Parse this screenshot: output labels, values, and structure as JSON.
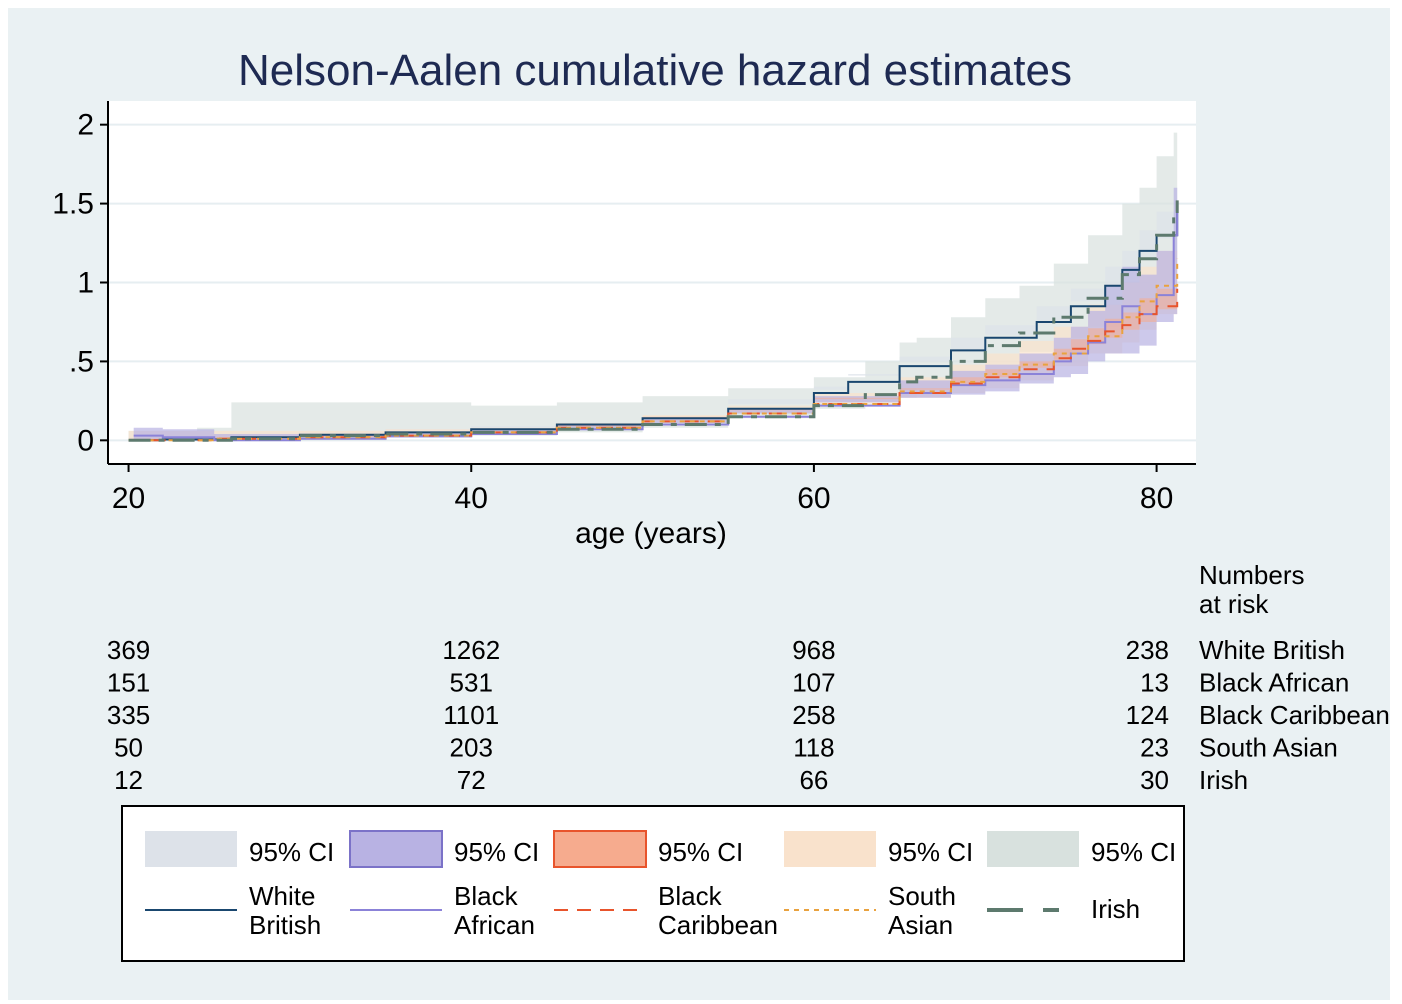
{
  "chart_data": {
    "type": "line",
    "title": "Nelson-Aalen cumulative hazard estimates",
    "xlabel": "age (years)",
    "ylabel": "",
    "xlim": [
      18.8,
      82.3
    ],
    "ylim": [
      -0.15,
      2.15
    ],
    "xticks": [
      {
        "value": 20,
        "label": "20"
      },
      {
        "value": 40,
        "label": "40"
      },
      {
        "value": 60,
        "label": "60"
      },
      {
        "value": 80,
        "label": "80"
      }
    ],
    "yticks": [
      {
        "value": 0,
        "label": "0"
      },
      {
        "value": 0.5,
        "label": ".5"
      },
      {
        "value": 1,
        "label": "1"
      },
      {
        "value": 1.5,
        "label": "1.5"
      },
      {
        "value": 2,
        "label": "2"
      }
    ],
    "grid": true,
    "series": [
      {
        "name": "White British",
        "color": "#1a476f",
        "dash": "solid",
        "ci_color": "#dde2e9",
        "ci_label": "95% CI",
        "x": [
          20,
          22,
          26,
          30,
          35,
          40,
          45,
          50,
          55,
          60,
          62,
          65,
          68,
          70,
          73,
          75,
          77,
          78,
          79,
          80,
          81.2
        ],
        "y": [
          0,
          0.005,
          0.02,
          0.035,
          0.05,
          0.07,
          0.1,
          0.14,
          0.2,
          0.3,
          0.37,
          0.47,
          0.57,
          0.65,
          0.75,
          0.85,
          0.98,
          1.08,
          1.2,
          1.3,
          1.45
        ],
        "lo": [
          0,
          0,
          0,
          0.02,
          0.035,
          0.05,
          0.08,
          0.12,
          0.17,
          0.26,
          0.32,
          0.41,
          0.5,
          0.57,
          0.67,
          0.76,
          0.88,
          0.97,
          1.08,
          1.16,
          1.28
        ],
        "hi": [
          0.02,
          0.03,
          0.05,
          0.06,
          0.07,
          0.09,
          0.12,
          0.17,
          0.23,
          0.34,
          0.42,
          0.53,
          0.65,
          0.73,
          0.85,
          0.96,
          1.1,
          1.2,
          1.33,
          1.45,
          1.6
        ]
      },
      {
        "name": "Black African",
        "color": "#8b82d8",
        "dash": "solid",
        "ci_color": "#b8b2e3",
        "ci_label": "95% CI",
        "x": [
          20.3,
          22,
          25,
          30,
          35,
          40,
          45,
          50,
          55,
          60,
          65,
          68,
          70,
          72,
          74,
          75,
          76,
          77,
          78,
          79,
          80,
          81,
          81.2
        ],
        "y": [
          0.03,
          0.02,
          0,
          0.01,
          0.025,
          0.04,
          0.07,
          0.1,
          0.15,
          0.22,
          0.3,
          0.35,
          0.38,
          0.42,
          0.5,
          0.55,
          0.62,
          0.75,
          0.85,
          0.8,
          0.92,
          1.3,
          1.45
        ],
        "lo": [
          0,
          0,
          0,
          0,
          0.01,
          0.02,
          0.04,
          0.07,
          0.11,
          0.17,
          0.24,
          0.27,
          0.29,
          0.31,
          0.36,
          0.4,
          0.42,
          0.5,
          0.55,
          0.55,
          0.6,
          0.75,
          0.8
        ],
        "hi": [
          0.08,
          0.07,
          0.04,
          0.04,
          0.05,
          0.07,
          0.1,
          0.14,
          0.2,
          0.28,
          0.38,
          0.44,
          0.48,
          0.55,
          0.65,
          0.72,
          0.82,
          0.98,
          1.1,
          1.05,
          1.2,
          1.6,
          1.7
        ]
      },
      {
        "name": "Black Caribbean",
        "color": "#e8542c",
        "dash": "long-dash",
        "ci_color": "#f6ab8e",
        "ci_label": "95% CI",
        "x": [
          20,
          25,
          30,
          35,
          40,
          45,
          50,
          55,
          60,
          65,
          68,
          70,
          72,
          74,
          75,
          76,
          77,
          78,
          79,
          80,
          81.2
        ],
        "y": [
          0,
          0.01,
          0.02,
          0.03,
          0.05,
          0.08,
          0.12,
          0.17,
          0.23,
          0.3,
          0.36,
          0.4,
          0.45,
          0.52,
          0.58,
          0.63,
          0.69,
          0.73,
          0.8,
          0.85,
          0.96
        ],
        "lo": [
          0,
          0,
          0.01,
          0.02,
          0.04,
          0.06,
          0.1,
          0.15,
          0.2,
          0.27,
          0.32,
          0.35,
          0.4,
          0.46,
          0.51,
          0.56,
          0.61,
          0.65,
          0.7,
          0.75,
          0.83
        ],
        "hi": [
          0.01,
          0.02,
          0.03,
          0.04,
          0.06,
          0.09,
          0.14,
          0.19,
          0.26,
          0.33,
          0.4,
          0.45,
          0.5,
          0.58,
          0.64,
          0.71,
          0.77,
          0.81,
          0.9,
          0.96,
          1.08
        ]
      },
      {
        "name": "South Asian",
        "color": "#e9a23f",
        "dash": "short-dash",
        "ci_color": "#f9e2cc",
        "ci_label": "95% CI",
        "x": [
          20,
          25,
          30,
          35,
          40,
          45,
          50,
          55,
          60,
          65,
          68,
          70,
          72,
          74,
          76,
          78,
          79,
          80,
          81.2
        ],
        "y": [
          0,
          0.01,
          0.02,
          0.03,
          0.05,
          0.08,
          0.12,
          0.17,
          0.23,
          0.31,
          0.37,
          0.42,
          0.48,
          0.55,
          0.66,
          0.78,
          0.88,
          0.98,
          1.15
        ],
        "lo": [
          0,
          0,
          0,
          0.01,
          0.03,
          0.05,
          0.08,
          0.12,
          0.17,
          0.22,
          0.27,
          0.3,
          0.33,
          0.38,
          0.47,
          0.55,
          0.62,
          0.7,
          0.8
        ],
        "hi": [
          0.06,
          0.06,
          0.06,
          0.07,
          0.08,
          0.11,
          0.16,
          0.22,
          0.3,
          0.4,
          0.48,
          0.55,
          0.63,
          0.72,
          0.86,
          1.0,
          1.1,
          1.2,
          1.25
        ]
      },
      {
        "name": "Irish",
        "color": "#5d7a6e",
        "dash": "irish",
        "ci_color": "#d8e1de",
        "ci_label": "95% CI",
        "x": [
          20,
          24,
          26,
          30,
          35,
          40,
          45,
          50,
          55,
          60,
          63,
          65,
          66,
          68,
          70,
          72,
          74,
          76,
          78,
          79,
          80,
          81,
          81.2
        ],
        "y": [
          0,
          0,
          0.01,
          0.03,
          0.04,
          0.05,
          0.07,
          0.1,
          0.15,
          0.22,
          0.29,
          0.37,
          0.4,
          0.5,
          0.6,
          0.68,
          0.78,
          0.9,
          1.05,
          1.15,
          1.3,
          1.45,
          1.52
        ],
        "lo": [
          0,
          0,
          0,
          0,
          0,
          0.02,
          0.03,
          0.05,
          0.08,
          0.14,
          0.2,
          0.24,
          0.27,
          0.33,
          0.4,
          0.48,
          0.56,
          0.65,
          0.72,
          0.8,
          0.9,
          1.0,
          1.05
        ],
        "hi": [
          0.06,
          0.08,
          0.24,
          0.24,
          0.24,
          0.22,
          0.24,
          0.28,
          0.33,
          0.4,
          0.5,
          0.62,
          0.65,
          0.78,
          0.9,
          0.98,
          1.12,
          1.3,
          1.5,
          1.6,
          1.8,
          1.95,
          2.0
        ]
      }
    ],
    "risk_table": {
      "header": "Numbers at risk",
      "ages": [
        20,
        40,
        60,
        80
      ],
      "rows": [
        {
          "label": "White British",
          "values": [
            "369",
            "1262",
            "968",
            "238"
          ]
        },
        {
          "label": "Black African",
          "values": [
            "151",
            "531",
            "107",
            "13"
          ]
        },
        {
          "label": "Black Caribbean",
          "values": [
            "335",
            "1101",
            "258",
            "124"
          ]
        },
        {
          "label": "South Asian",
          "values": [
            "50",
            "203",
            "118",
            "23"
          ]
        },
        {
          "label": "Irish",
          "values": [
            "12",
            "72",
            "66",
            "30"
          ]
        }
      ]
    },
    "legend": {
      "placement": "bottom",
      "ci_label": "95% CI",
      "line_labels": [
        [
          "White",
          "British"
        ],
        [
          "Black",
          "African"
        ],
        [
          "Black",
          "Caribbean"
        ],
        [
          "South",
          "Asian"
        ],
        [
          "Irish"
        ]
      ]
    }
  }
}
